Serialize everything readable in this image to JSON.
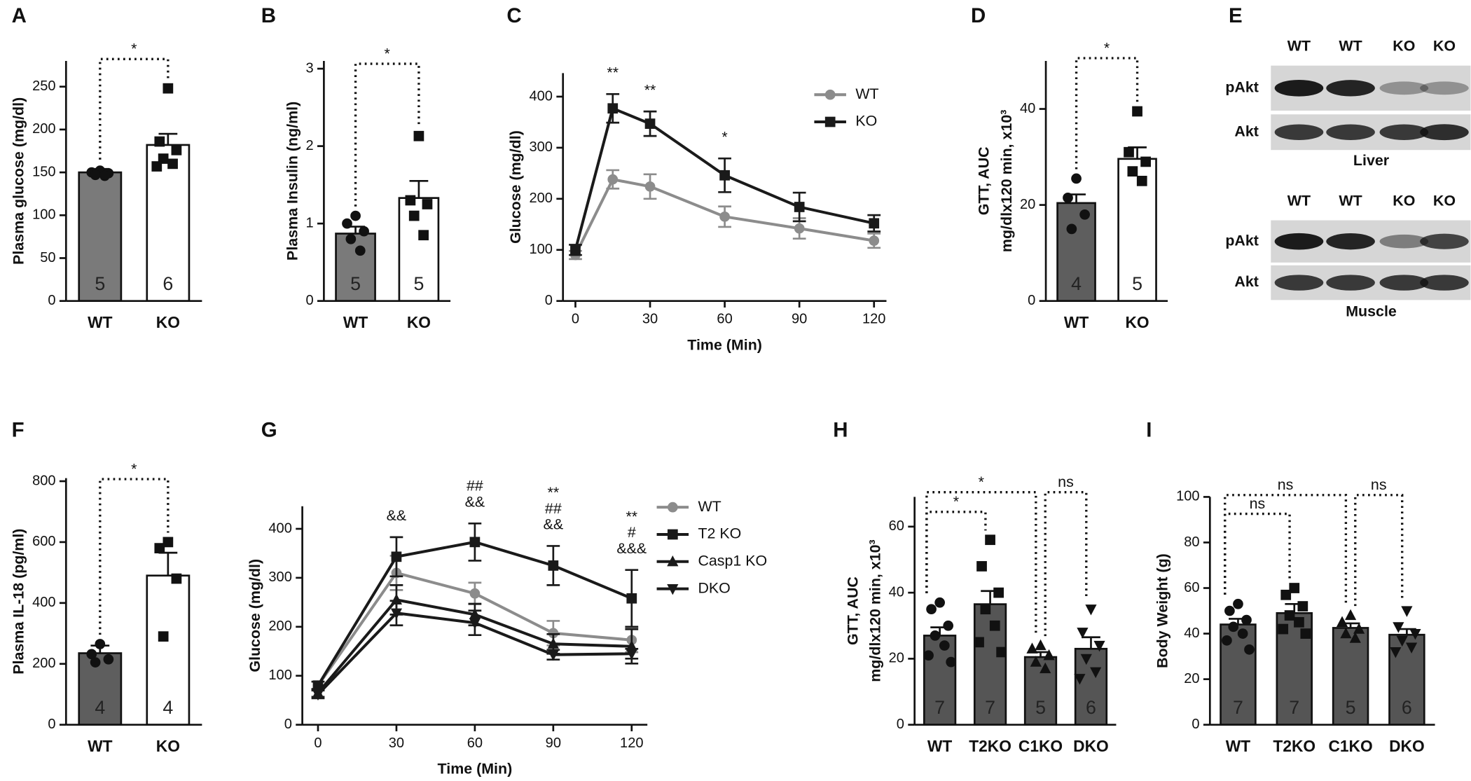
{
  "chart_data": [
    {
      "type": "bar",
      "label": "A",
      "ylabel": [
        "Plasma glucose (mg/dl)"
      ],
      "categories": [
        "WT",
        "KO"
      ],
      "values": [
        150,
        182
      ],
      "errors": [
        4,
        13
      ],
      "n": [
        5,
        6
      ],
      "colors": [
        "#7a7a7a",
        "#ffffff"
      ],
      "markers": [
        "circle",
        "square"
      ],
      "points": [
        [
          152,
          150,
          149,
          147,
          146
        ],
        [
          248,
          186,
          176,
          166,
          160,
          157
        ]
      ],
      "ylim": [
        0,
        280
      ],
      "yticks": [
        0,
        50,
        100,
        150,
        200,
        250
      ],
      "comparisons": [
        {
          "between": [
            "WT",
            "KO"
          ],
          "label": "*"
        }
      ]
    },
    {
      "type": "bar",
      "label": "B",
      "ylabel": [
        "Plasma Insulin (ng/ml)"
      ],
      "categories": [
        "WT",
        "KO"
      ],
      "values": [
        0.87,
        1.33
      ],
      "errors": [
        0.09,
        0.22
      ],
      "n": [
        5,
        5
      ],
      "colors": [
        "#7a7a7a",
        "#ffffff"
      ],
      "markers": [
        "circle",
        "square"
      ],
      "points": [
        [
          1.1,
          1.0,
          0.9,
          0.8,
          0.65
        ],
        [
          2.13,
          1.3,
          1.25,
          1.1,
          0.85
        ]
      ],
      "ylim": [
        0,
        3.1
      ],
      "yticks": [
        0,
        1,
        2,
        3
      ],
      "comparisons": [
        {
          "between": [
            "WT",
            "KO"
          ],
          "label": "*"
        }
      ]
    },
    {
      "type": "line",
      "label": "C",
      "xlabel": "Time (Min)",
      "ylabel": [
        "Glucose (mg/dl)"
      ],
      "x": [
        0,
        15,
        30,
        60,
        90,
        120
      ],
      "xlim": [
        -5,
        125
      ],
      "xticks": [
        0,
        30,
        60,
        90,
        120
      ],
      "ylim": [
        0,
        446
      ],
      "yticks": [
        0,
        100,
        200,
        300,
        400
      ],
      "series": [
        {
          "name": "WT",
          "color": "#8c8c8c",
          "marker": "circle",
          "values": [
            90,
            238,
            224,
            165,
            142,
            118
          ],
          "errors": [
            8,
            18,
            24,
            20,
            20,
            14
          ]
        },
        {
          "name": "KO",
          "color": "#1a1a1a",
          "marker": "square",
          "values": [
            100,
            377,
            347,
            246,
            184,
            152
          ],
          "errors": [
            10,
            28,
            24,
            33,
            28,
            16
          ]
        }
      ],
      "annotations": [
        {
          "x": 15,
          "text": [
            "**"
          ]
        },
        {
          "x": 30,
          "text": [
            "**"
          ]
        },
        {
          "x": 60,
          "text": [
            "*"
          ]
        }
      ]
    },
    {
      "type": "bar",
      "label": "D",
      "ylabel": [
        "GTT, AUC",
        "mg/dlx120 min, x10³"
      ],
      "categories": [
        "WT",
        "KO"
      ],
      "values": [
        20.4,
        29.6
      ],
      "errors": [
        1.8,
        2.4
      ],
      "n": [
        4,
        5
      ],
      "colors": [
        "#5e5e5e",
        "#ffffff"
      ],
      "markers": [
        "circle",
        "square"
      ],
      "points": [
        [
          25.5,
          21.5,
          18,
          15
        ],
        [
          39.5,
          31,
          29,
          27,
          25
        ]
      ],
      "ylim": [
        0,
        50
      ],
      "yticks": [
        0,
        20,
        40
      ],
      "comparisons": [
        {
          "between": [
            "WT",
            "KO"
          ],
          "label": "*"
        }
      ]
    },
    {
      "type": "blot",
      "label": "E",
      "blots": [
        {
          "tissue": "Liver",
          "lanes": [
            "WT",
            "WT",
            "KO",
            "KO"
          ],
          "rows": [
            "pAkt",
            "Akt"
          ]
        },
        {
          "tissue": "Muscle",
          "lanes": [
            "WT",
            "WT",
            "KO",
            "KO"
          ],
          "rows": [
            "pAkt",
            "Akt"
          ]
        }
      ]
    },
    {
      "type": "bar",
      "label": "F",
      "ylabel": [
        "Plasma IL-18 (pg/ml)"
      ],
      "categories": [
        "WT",
        "KO"
      ],
      "values": [
        235,
        490
      ],
      "errors": [
        25,
        75
      ],
      "n": [
        4,
        4
      ],
      "colors": [
        "#5e5e5e",
        "#ffffff"
      ],
      "markers": [
        "circle",
        "square"
      ],
      "points": [
        [
          265,
          232,
          215,
          205
        ],
        [
          600,
          580,
          480,
          290
        ]
      ],
      "ylim": [
        0,
        810
      ],
      "yticks": [
        0,
        200,
        400,
        600,
        800
      ],
      "comparisons": [
        {
          "between": [
            "WT",
            "KO"
          ],
          "label": "*"
        }
      ]
    },
    {
      "type": "line",
      "label": "G",
      "xlabel": "Time (Min)",
      "ylabel": [
        "Glucose (mg/dl)"
      ],
      "x": [
        0,
        30,
        60,
        90,
        120
      ],
      "xlim": [
        -6,
        126
      ],
      "xticks": [
        0,
        30,
        60,
        90,
        120
      ],
      "ylim": [
        0,
        446
      ],
      "yticks": [
        0,
        100,
        200,
        300,
        400
      ],
      "series": [
        {
          "name": "WT",
          "color": "#8c8c8c",
          "marker": "circle",
          "values": [
            80,
            310,
            268,
            187,
            173
          ],
          "errors": [
            8,
            35,
            22,
            25,
            25
          ]
        },
        {
          "name": "T2 KO",
          "color": "#1a1a1a",
          "marker": "square",
          "values": [
            80,
            343,
            373,
            325,
            258
          ],
          "errors": [
            8,
            40,
            38,
            40,
            58
          ]
        },
        {
          "name": "Casp1 KO",
          "color": "#1a1a1a",
          "marker": "triangle",
          "values": [
            65,
            255,
            225,
            165,
            160
          ],
          "errors": [
            8,
            30,
            22,
            20,
            35
          ]
        },
        {
          "name": "DKO",
          "color": "#1a1a1a",
          "marker": "triangle-down",
          "values": [
            62,
            228,
            208,
            143,
            145
          ],
          "errors": [
            8,
            25,
            25,
            10,
            10
          ]
        }
      ],
      "annotations": [
        {
          "x": 30,
          "text": [
            "&&"
          ]
        },
        {
          "x": 60,
          "text": [
            "##",
            "&&"
          ]
        },
        {
          "x": 90,
          "text": [
            "**",
            "##",
            "&&"
          ]
        },
        {
          "x": 120,
          "text": [
            "**",
            "#",
            "&&&"
          ]
        }
      ]
    },
    {
      "type": "bar",
      "label": "H",
      "ylabel": [
        "GTT, AUC",
        "mg/dlx120 min, x10³"
      ],
      "categories": [
        "WT",
        "T2KO",
        "C1KO",
        "DKO"
      ],
      "values": [
        27,
        36.5,
        20.5,
        23
      ],
      "errors": [
        2.5,
        4,
        1.5,
        3.5
      ],
      "n": [
        7,
        7,
        5,
        6
      ],
      "colors": [
        "#555555",
        "#555555",
        "#555555",
        "#555555"
      ],
      "markers": [
        "circle",
        "square",
        "triangle",
        "triangle-down"
      ],
      "points": [
        [
          37,
          35,
          30,
          27,
          24,
          21,
          19
        ],
        [
          56,
          48,
          40,
          35,
          30,
          25,
          22
        ],
        [
          24,
          23,
          21,
          19,
          17
        ],
        [
          35,
          28,
          24,
          20,
          16,
          14
        ]
      ],
      "ylim": [
        0,
        69
      ],
      "yticks": [
        0,
        20,
        40,
        60
      ],
      "comparisons": [
        {
          "between": [
            "WT",
            "T2KO"
          ],
          "label": "*"
        },
        {
          "between": [
            "WT",
            "C1KO"
          ],
          "label": "*"
        },
        {
          "between": [
            "C1KO",
            "DKO"
          ],
          "label": "ns"
        }
      ]
    },
    {
      "type": "bar",
      "label": "I",
      "ylabel": [
        "Body Weight (g)"
      ],
      "categories": [
        "WT",
        "T2KO",
        "C1KO",
        "DKO"
      ],
      "values": [
        44,
        49,
        42.5,
        39.5
      ],
      "errors": [
        2.5,
        4,
        2,
        2.5
      ],
      "n": [
        7,
        7,
        5,
        6
      ],
      "colors": [
        "#555555",
        "#555555",
        "#555555",
        "#555555"
      ],
      "markers": [
        "circle",
        "square",
        "triangle",
        "triangle-down"
      ],
      "points": [
        [
          53,
          50,
          46,
          43,
          40,
          37,
          33
        ],
        [
          60,
          57,
          52,
          48,
          45,
          42,
          40
        ],
        [
          48,
          45,
          42,
          40,
          38
        ],
        [
          50,
          43,
          40,
          37,
          34,
          32
        ]
      ],
      "ylim": [
        0,
        100
      ],
      "yticks": [
        0,
        20,
        40,
        60,
        80,
        100
      ],
      "comparisons": [
        {
          "between": [
            "WT",
            "T2KO"
          ],
          "label": "ns"
        },
        {
          "between": [
            "WT",
            "C1KO"
          ],
          "label": "ns"
        },
        {
          "between": [
            "C1KO",
            "DKO"
          ],
          "label": "ns"
        }
      ]
    }
  ]
}
